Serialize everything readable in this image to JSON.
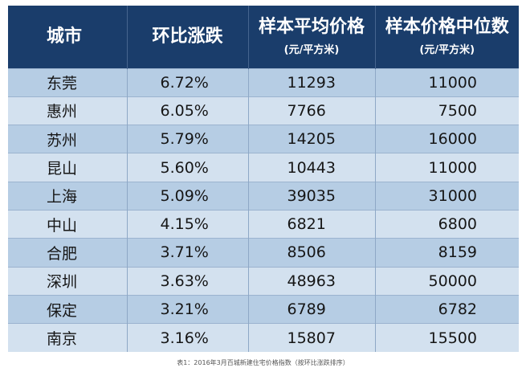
{
  "table": {
    "headers": {
      "city": "城市",
      "change": "环比涨跌",
      "avg_price": "样本平均价格",
      "avg_price_unit": "(元/平方米)",
      "median_price": "样本价格中位数",
      "median_price_unit": "(元/平方米)"
    },
    "rows": [
      {
        "city": "东莞",
        "change": "6.72%",
        "avg": "11293",
        "median": "11000"
      },
      {
        "city": "惠州",
        "change": "6.05%",
        "avg": "7766",
        "median": "7500"
      },
      {
        "city": "苏州",
        "change": "5.79%",
        "avg": "14205",
        "median": "16000"
      },
      {
        "city": "昆山",
        "change": "5.60%",
        "avg": "10443",
        "median": "11000"
      },
      {
        "city": "上海",
        "change": "5.09%",
        "avg": "39035",
        "median": "31000"
      },
      {
        "city": "中山",
        "change": "4.15%",
        "avg": "6821",
        "median": "6800"
      },
      {
        "city": "合肥",
        "change": "3.71%",
        "avg": "8506",
        "median": "8159"
      },
      {
        "city": "深圳",
        "change": "3.63%",
        "avg": "48963",
        "median": "50000"
      },
      {
        "city": "保定",
        "change": "3.21%",
        "avg": "6789",
        "median": "6782"
      },
      {
        "city": "南京",
        "change": "3.16%",
        "avg": "15807",
        "median": "15500"
      }
    ]
  },
  "caption": "表1：2016年3月百城新建住宅价格指数（按环比涨跌排序）",
  "colors": {
    "header_bg": "#1a3d6b",
    "row_odd": "#b6cde4",
    "row_even": "#d3e1ef"
  }
}
